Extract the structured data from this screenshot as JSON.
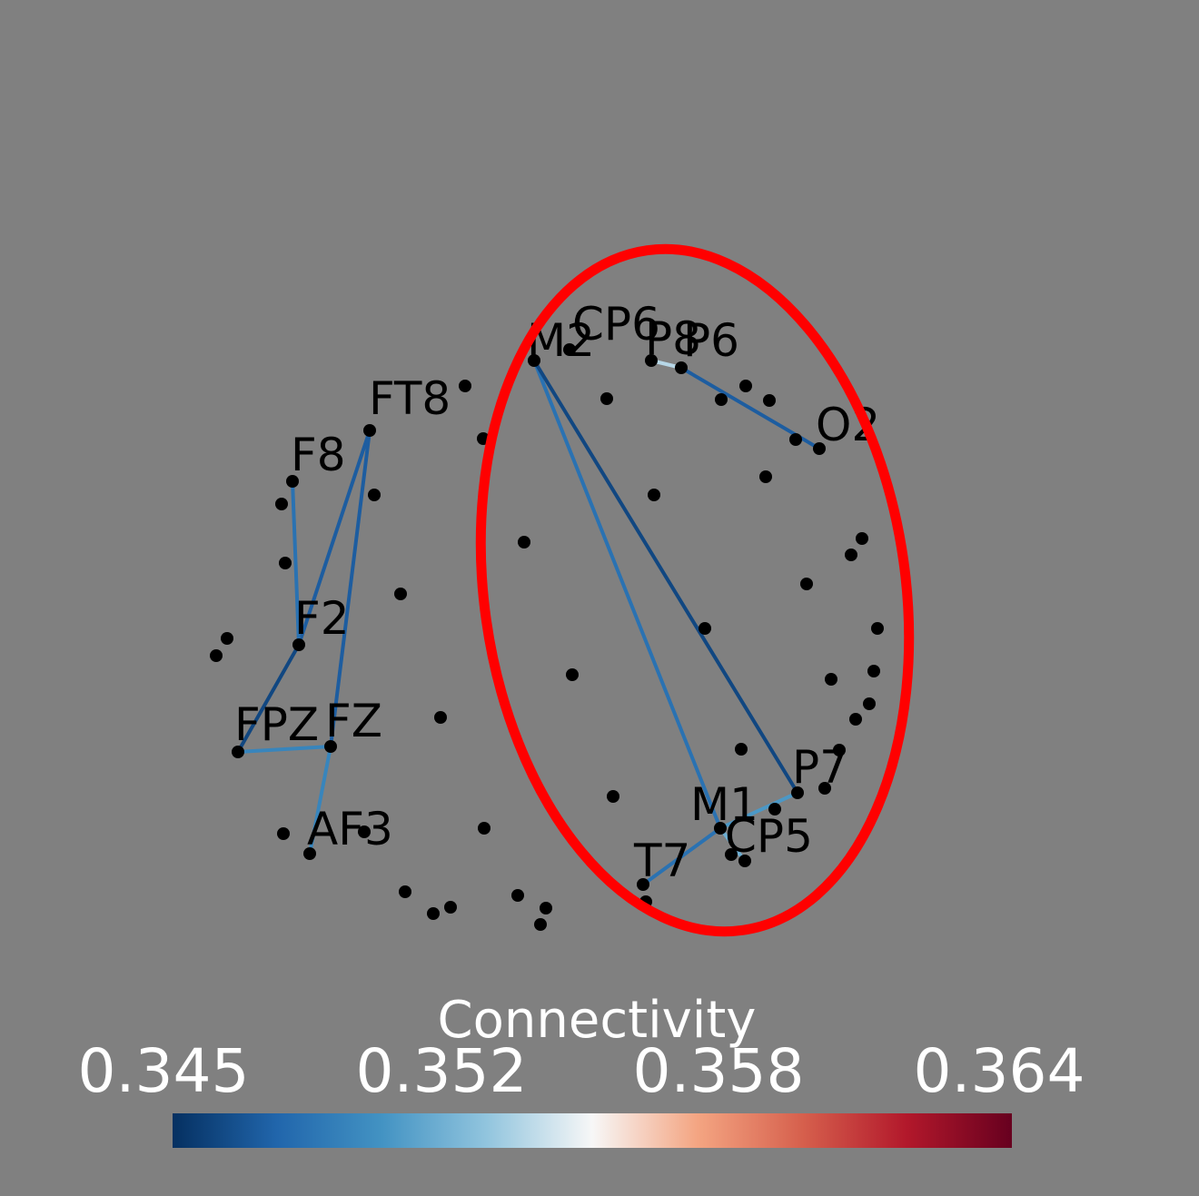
{
  "colors": {
    "background": "#808080",
    "node": "#000000",
    "label": "#000000",
    "highlight_ellipse": "#ff0000",
    "colormap": [
      "#053061",
      "#2166ac",
      "#4393c3",
      "#92c5de",
      "#f7f7f7",
      "#f4a582",
      "#d6604d",
      "#b2182b",
      "#67001f"
    ]
  },
  "colorbar": {
    "title": "Connectivity",
    "ticks": [
      "0.345",
      "0.352",
      "0.358",
      "0.364"
    ],
    "min": 0.345,
    "max": 0.364
  },
  "electrode_labels": [
    {
      "id": "M2",
      "text": "M2"
    },
    {
      "id": "CP6",
      "text": "CP6"
    },
    {
      "id": "P8",
      "text": "P8"
    },
    {
      "id": "P6",
      "text": "P6"
    },
    {
      "id": "O2",
      "text": "O2"
    },
    {
      "id": "FT8",
      "text": "FT8"
    },
    {
      "id": "F8",
      "text": "F8"
    },
    {
      "id": "F2",
      "text": "F2"
    },
    {
      "id": "FPZ",
      "text": "FPZ"
    },
    {
      "id": "FZ",
      "text": "FZ"
    },
    {
      "id": "AF3",
      "text": "AF3"
    },
    {
      "id": "M1",
      "text": "M1"
    },
    {
      "id": "P7",
      "text": "P7"
    },
    {
      "id": "CP5",
      "text": "CP5"
    },
    {
      "id": "T7",
      "text": "T7"
    }
  ],
  "connections": [
    {
      "from": "M2",
      "to": "M1",
      "value": 0.348
    },
    {
      "from": "M2",
      "to": "P7",
      "value": 0.346
    },
    {
      "from": "P6",
      "to": "O2",
      "value": 0.347
    },
    {
      "from": "P8",
      "to": "P6",
      "value": 0.353
    },
    {
      "from": "FT8",
      "to": "F2",
      "value": 0.347
    },
    {
      "from": "FT8",
      "to": "FZ",
      "value": 0.347
    },
    {
      "from": "F8",
      "to": "F2",
      "value": 0.348
    },
    {
      "from": "F2",
      "to": "FPZ",
      "value": 0.346
    },
    {
      "from": "FPZ",
      "to": "FZ",
      "value": 0.349
    },
    {
      "from": "FZ",
      "to": "AF3",
      "value": 0.349
    },
    {
      "from": "M1",
      "to": "T7",
      "value": 0.348
    },
    {
      "from": "M1",
      "to": "CP5",
      "value": 0.351
    },
    {
      "from": "P7",
      "to": "M1",
      "value": 0.35
    }
  ]
}
